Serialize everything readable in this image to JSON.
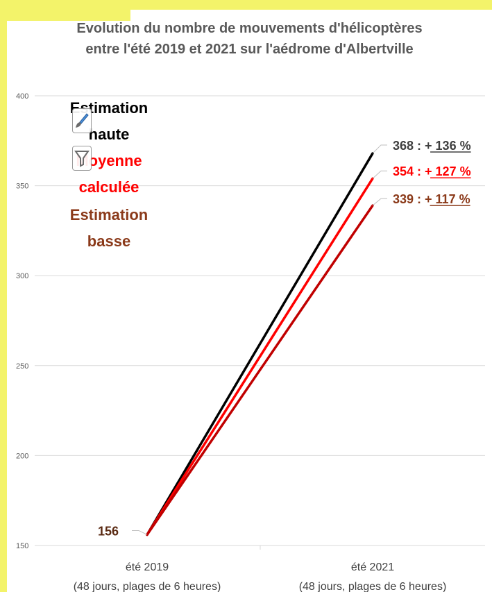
{
  "title_line1": "Evolution du nombre de mouvements d'hélicoptères",
  "title_line2": "entre l'été 2019 et 2021 sur l'aédrome d'Albertville",
  "chart_data": {
    "type": "line",
    "categories": [
      "été 2019",
      "été 2021"
    ],
    "category_sublabels": [
      "(48 jours, plages de 6 heures)",
      "(48 jours, plages de 6 heures)"
    ],
    "series": [
      {
        "name": "Estimation haute",
        "values": [
          156,
          368
        ],
        "color": "#000000",
        "end_label": "368 : + 136 %"
      },
      {
        "name": "Moyenne calculée",
        "values": [
          156,
          354
        ],
        "color": "#ff0000",
        "end_label": "354 : + 127 %"
      },
      {
        "name": "Estimation basse",
        "values": [
          156,
          339
        ],
        "color": "#c00000",
        "end_label": "339 : + 117 %"
      }
    ],
    "start_label": "156",
    "ylim": [
      150,
      400
    ],
    "yticks": [
      150,
      200,
      250,
      300,
      350,
      400
    ],
    "grid": true,
    "legend_placement": "top-left"
  },
  "legend": {
    "high_line1": "Estimation",
    "high_line2": "haute",
    "mean_line1": "Moyenne",
    "mean_line2": "calculée",
    "low_line1": "Estimation",
    "low_line2": "basse"
  },
  "colors": {
    "high": "#000000",
    "mean": "#ff0000",
    "low": "#c00000",
    "low_text": "#8b3a1a",
    "grid": "#d9d9d9",
    "axis_text": "#595959",
    "page_border": "#f3f36a"
  },
  "icons": [
    "brush-icon",
    "filter-icon"
  ]
}
